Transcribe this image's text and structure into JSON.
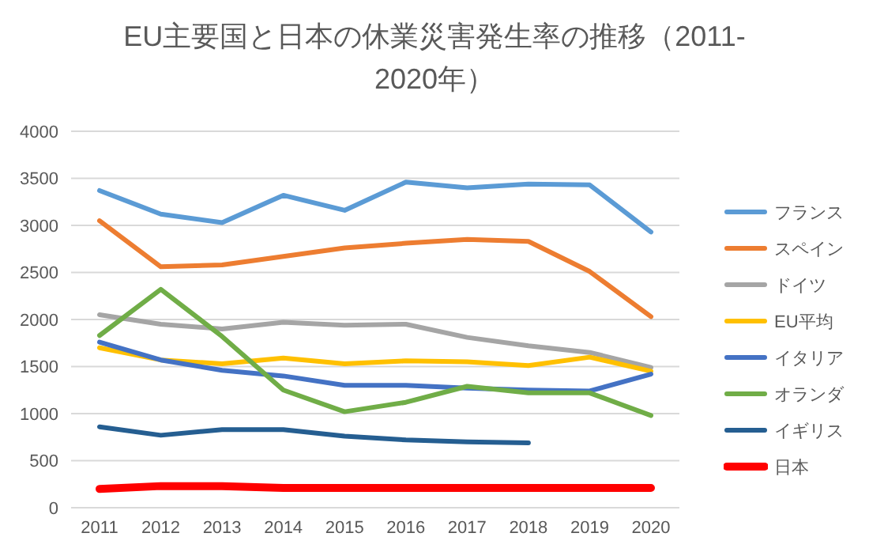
{
  "chart_data": {
    "type": "line",
    "title": "EU主要国と日本の休業災害発生率の推移（2011-2020年）",
    "categories": [
      "2011",
      "2012",
      "2013",
      "2014",
      "2015",
      "2016",
      "2017",
      "2018",
      "2019",
      "2020"
    ],
    "series": [
      {
        "name": "フランス",
        "color": "#5b9bd5",
        "values": [
          3370,
          3120,
          3030,
          3320,
          3160,
          3460,
          3400,
          3440,
          3430,
          2930
        ]
      },
      {
        "name": "スペイン",
        "color": "#ed7d31",
        "values": [
          3050,
          2560,
          2580,
          2670,
          2760,
          2810,
          2850,
          2830,
          2510,
          2030
        ]
      },
      {
        "name": "ドイツ",
        "color": "#a5a5a5",
        "values": [
          2050,
          1950,
          1900,
          1970,
          1940,
          1950,
          1810,
          1720,
          1650,
          1490
        ]
      },
      {
        "name": "EU平均",
        "color": "#ffc000",
        "values": [
          1700,
          1570,
          1530,
          1590,
          1530,
          1560,
          1550,
          1510,
          1600,
          1450
        ]
      },
      {
        "name": "イタリア",
        "color": "#4472c4",
        "values": [
          1760,
          1570,
          1460,
          1400,
          1300,
          1300,
          1270,
          1250,
          1240,
          1420
        ]
      },
      {
        "name": "オランダ",
        "color": "#70ad47",
        "values": [
          1830,
          2320,
          1820,
          1250,
          1020,
          1120,
          1290,
          1220,
          1220,
          980
        ]
      },
      {
        "name": "イギリス",
        "color": "#255e91",
        "values": [
          860,
          770,
          830,
          830,
          760,
          720,
          700,
          690,
          null,
          null
        ]
      },
      {
        "name": "日本",
        "color": "#ff0000",
        "values": [
          200,
          230,
          230,
          210,
          210,
          210,
          210,
          210,
          210,
          210
        ]
      }
    ],
    "ylim": [
      0,
      4000
    ],
    "yticks": [
      0,
      500,
      1000,
      1500,
      2000,
      2500,
      3000,
      3500,
      4000
    ],
    "grid": "y",
    "legend": "right",
    "marker": "none"
  }
}
